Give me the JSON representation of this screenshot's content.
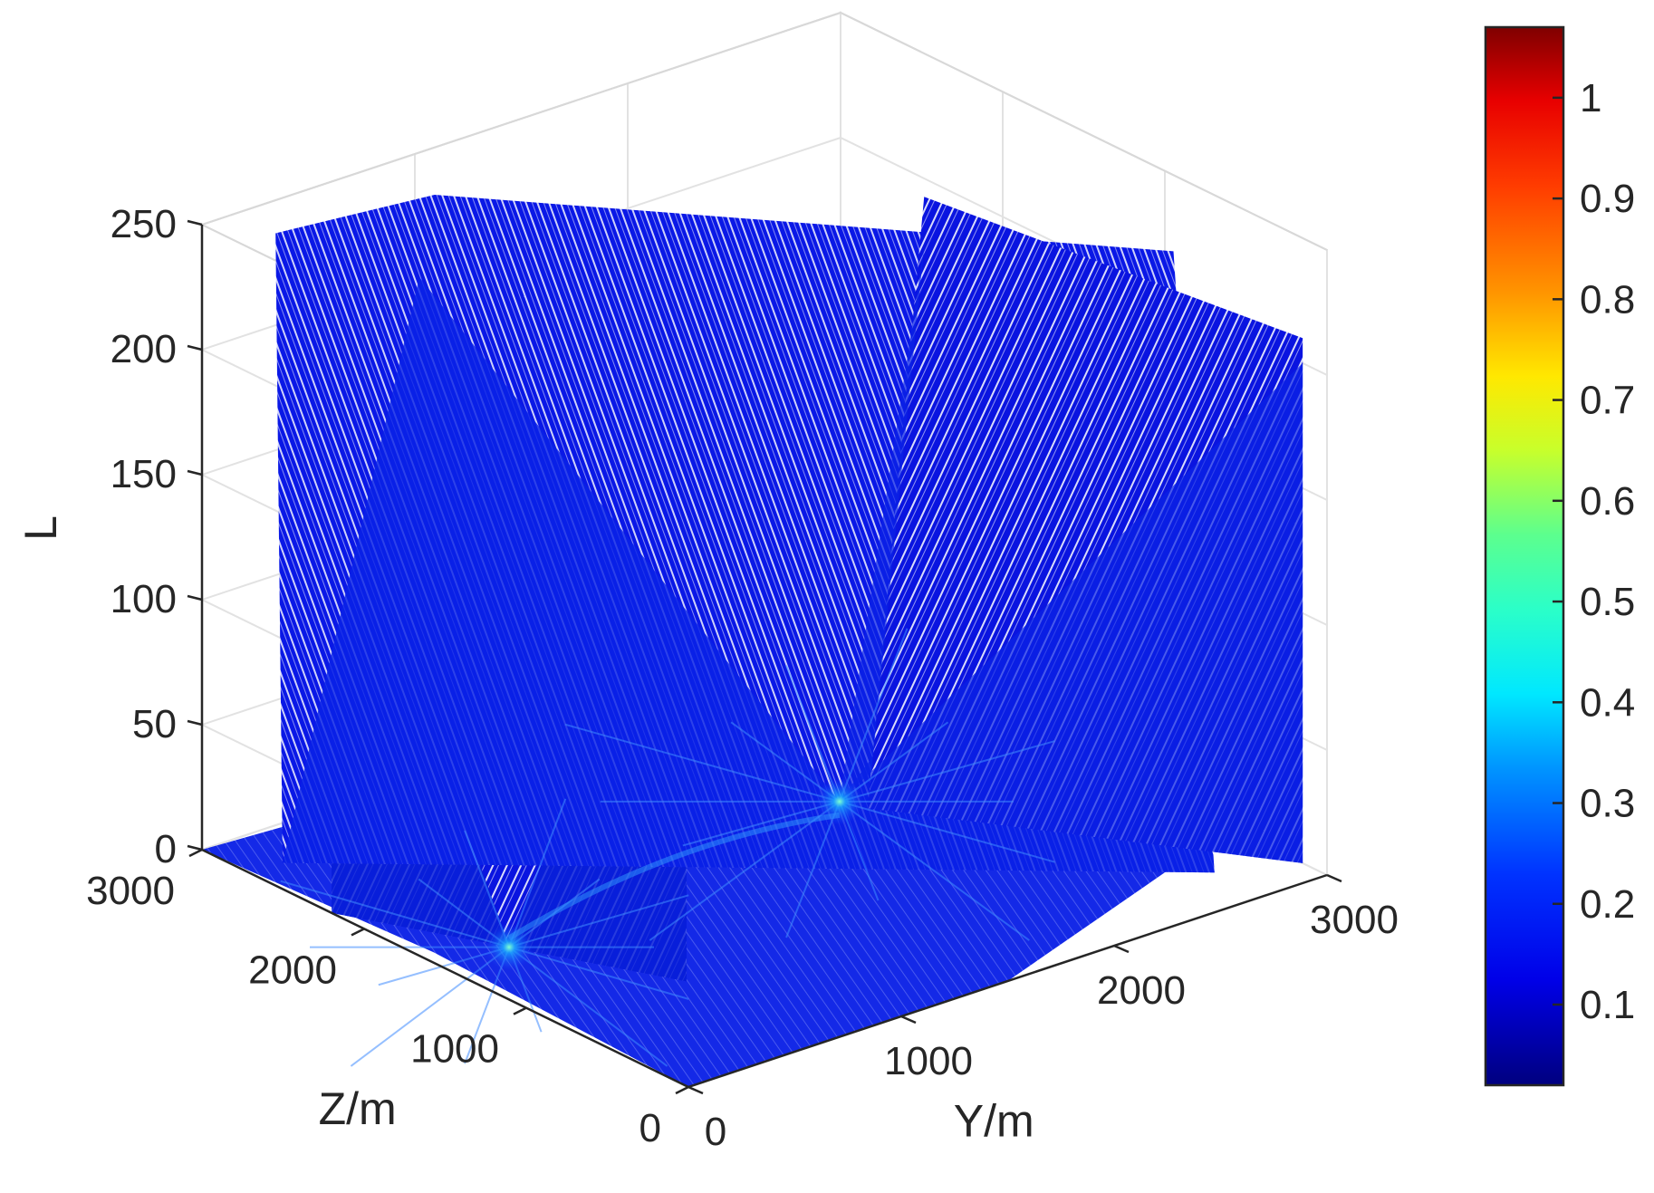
{
  "chart_data": {
    "type": "other",
    "description_kind": "3d-slice",
    "zlabel": "L",
    "xlabel": "Z/m",
    "ylabel": "Y/m",
    "l_ticks": [
      "0",
      "50",
      "100",
      "150",
      "200",
      "250"
    ],
    "z_ticks": [
      "0",
      "1000",
      "2000",
      "3000"
    ],
    "y_ticks": [
      "0",
      "1000",
      "2000",
      "3000"
    ],
    "l_range": [
      0,
      250
    ],
    "z_range": [
      0,
      3000
    ],
    "y_range": [
      0,
      3000
    ],
    "grid": true,
    "colorbar": {
      "colormap": "jet",
      "range": [
        0.02,
        1.07
      ],
      "ticks": [
        "0.1",
        "0.2",
        "0.3",
        "0.4",
        "0.5",
        "0.6",
        "0.7",
        "0.8",
        "0.9",
        "1"
      ],
      "tick_values": [
        0.1,
        0.2,
        0.3,
        0.4,
        0.5,
        0.6,
        0.7,
        0.8,
        0.9,
        1.0
      ],
      "placement": "right"
    },
    "hotspots": [
      {
        "z": 1500,
        "y": 300,
        "l": 0,
        "value": 0.45
      },
      {
        "z": 1300,
        "y": 1700,
        "l": 25,
        "value": 0.55
      }
    ]
  }
}
